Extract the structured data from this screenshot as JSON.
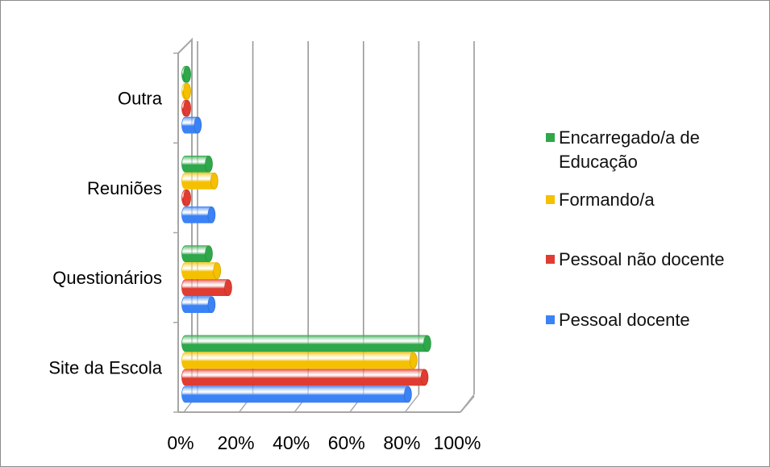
{
  "chart_data": {
    "type": "bar",
    "orientation": "horizontal",
    "categories": [
      "Site da Escola",
      "Questionários",
      "Reuniões",
      "Outra"
    ],
    "series": [
      {
        "name": "Pessoal docente",
        "color": "#3b82f6",
        "values": [
          81,
          10,
          10,
          5
        ]
      },
      {
        "name": "Pessoal não docente",
        "color": "#e03c31",
        "values": [
          87,
          16,
          1,
          1
        ]
      },
      {
        "name": "Formando/a",
        "color": "#f5c000",
        "values": [
          83,
          12,
          11,
          1
        ]
      },
      {
        "name": "Encarregado/a de Educação",
        "color": "#2ea84a",
        "values": [
          88,
          9,
          9,
          1
        ]
      }
    ],
    "x_ticks": [
      "0%",
      "20%",
      "40%",
      "60%",
      "80%",
      "100%"
    ],
    "xlim": [
      0,
      100
    ],
    "grid": true,
    "legend_position": "right"
  }
}
